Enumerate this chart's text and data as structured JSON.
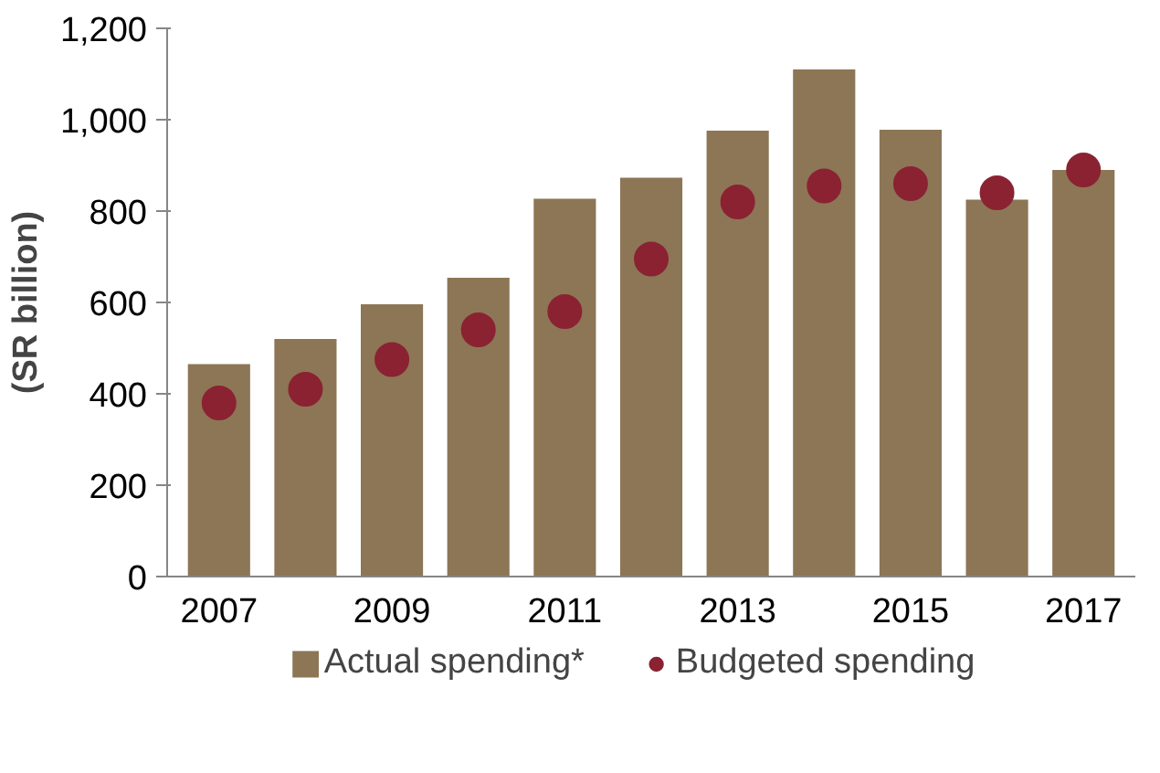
{
  "chart_data": {
    "type": "bar",
    "ylabel": "(SR billion)",
    "categories": [
      "2007",
      null,
      "2009",
      null,
      "2011",
      null,
      "2013",
      null,
      "2015",
      null,
      "2017"
    ],
    "series": [
      {
        "name": "Actual spending*",
        "type": "bar",
        "color": "#8c7656",
        "values": [
          465,
          520,
          596,
          654,
          827,
          873,
          976,
          1110,
          978,
          825,
          890
        ]
      },
      {
        "name": "Budgeted spending",
        "type": "scatter",
        "color": "#8b2232",
        "values": [
          380,
          410,
          475,
          540,
          580,
          695,
          820,
          855,
          860,
          840,
          890
        ]
      }
    ],
    "ylim": [
      0,
      1200
    ],
    "yticks": [
      0,
      200,
      400,
      600,
      800,
      {
        "value": 1000,
        "label": "1,000"
      },
      {
        "value": 1200,
        "label": "1,200"
      }
    ],
    "grid": false,
    "legend": "bottom",
    "marker": "circle"
  }
}
